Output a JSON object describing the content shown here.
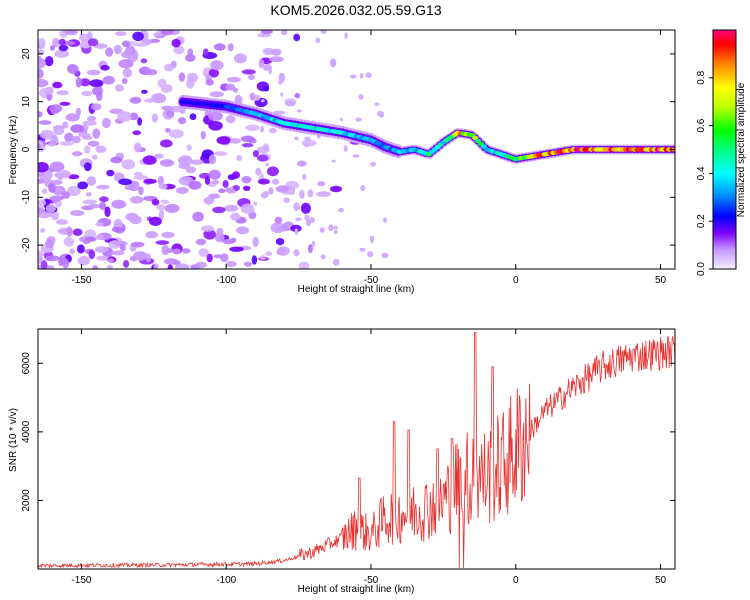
{
  "title": "KOM5.2026.032.05.59.G13",
  "chart_data": [
    {
      "type": "heatmap",
      "title": "KOM5.2026.032.05.59.G13",
      "xlabel": "Height of straight line (km)",
      "ylabel": "Frequency (Hz)",
      "xlim": [
        -165,
        55
      ],
      "ylim": [
        -25,
        25
      ],
      "xticks": [
        "-150",
        "-100",
        "-50",
        "0",
        "50"
      ],
      "xtick_values": [
        -150,
        -100,
        -50,
        0,
        50
      ],
      "yticks": [
        "-20",
        "-10",
        "0",
        "10",
        "20"
      ],
      "ytick_values": [
        -20,
        -10,
        0,
        10,
        20
      ],
      "colorbar": {
        "label": "Normalized spectral amplitude",
        "range": [
          0,
          1
        ],
        "ticks": [
          "0.0",
          "0.2",
          "0.4",
          "0.6",
          "0.8"
        ],
        "tick_values": [
          0,
          0.2,
          0.4,
          0.6,
          0.8
        ]
      },
      "ridge": {
        "x": [
          -115,
          -100,
          -90,
          -80,
          -70,
          -60,
          -50,
          -45,
          -40,
          -35,
          -30,
          -25,
          -20,
          -15,
          -10,
          -5,
          0,
          10,
          20,
          30,
          40,
          50,
          55
        ],
        "y": [
          10,
          9,
          7.5,
          5.5,
          4.5,
          3.5,
          2,
          0.5,
          -0.5,
          0,
          -1,
          1.5,
          3.5,
          3,
          0,
          -1,
          -2,
          -1,
          0,
          0,
          0,
          0,
          0
        ],
        "amplitude": [
          0.15,
          0.25,
          0.35,
          0.45,
          0.45,
          0.4,
          0.35,
          0.3,
          0.4,
          0.35,
          0.5,
          0.45,
          0.85,
          0.7,
          0.4,
          0.45,
          0.6,
          0.9,
          0.95,
          0.95,
          0.9,
          0.95,
          1.0
        ]
      }
    },
    {
      "type": "line",
      "xlabel": "Height of straight line (km)",
      "ylabel": "SNR (10 * v/v)",
      "xlim": [
        -165,
        55
      ],
      "ylim": [
        0,
        7000
      ],
      "xticks": [
        "-150",
        "-100",
        "-50",
        "0",
        "50"
      ],
      "xtick_values": [
        -150,
        -100,
        -50,
        0,
        50
      ],
      "yticks": [
        "2000",
        "4000",
        "6000"
      ],
      "ytick_values": [
        2000,
        4000,
        6000
      ],
      "color": "#e8312f",
      "envelope": {
        "x": [
          -165,
          -120,
          -90,
          -80,
          -70,
          -60,
          -55,
          -50,
          -45,
          -40,
          -35,
          -30,
          -25,
          -20,
          -15,
          -10,
          -5,
          0,
          5,
          10,
          20,
          30,
          40,
          50,
          55
        ],
        "y": [
          100,
          120,
          150,
          250,
          500,
          900,
          1200,
          1000,
          1500,
          1600,
          1700,
          1800,
          2000,
          2500,
          2700,
          2700,
          3000,
          3500,
          4000,
          4600,
          5300,
          5900,
          6200,
          6300,
          6350
        ]
      },
      "peaks": [
        {
          "x": -54,
          "y": 2650
        },
        {
          "x": -42,
          "y": 4300
        },
        {
          "x": -37,
          "y": 4050
        },
        {
          "x": -27,
          "y": 3500
        },
        {
          "x": -22,
          "y": 3800
        },
        {
          "x": -14,
          "y": 6900
        },
        {
          "x": -8,
          "y": 5900
        }
      ]
    }
  ]
}
